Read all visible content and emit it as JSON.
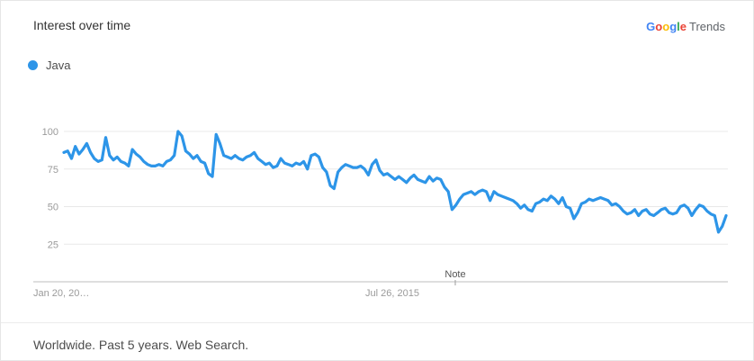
{
  "header": {
    "title": "Interest over time"
  },
  "brand": {
    "google": "Google",
    "trends": "Trends"
  },
  "colors": {
    "series": "#2d95e8",
    "g_blue": "#4285f4",
    "g_red": "#ea4335",
    "g_yellow": "#fbbc05",
    "g_green": "#34a853",
    "grid": "#e8e8e8",
    "tick": "#9a9a9a"
  },
  "note": "Note",
  "footer": "Worldwide. Past 5 years. Web Search.",
  "chart_data": {
    "type": "line",
    "title": "",
    "xlabel": "",
    "ylabel": "",
    "ylim": [
      0,
      100
    ],
    "yticks": [
      "100",
      "75",
      "50",
      "25"
    ],
    "xticks": [
      "Jan 20, 20…",
      "Jul 26, 2015"
    ],
    "legend": "top-left",
    "grid": true,
    "series": [
      {
        "name": "Java",
        "values": [
          86,
          87,
          82,
          90,
          85,
          88,
          92,
          86,
          82,
          80,
          81,
          96,
          84,
          81,
          83,
          80,
          79,
          77,
          88,
          85,
          83,
          80,
          78,
          77,
          77,
          78,
          77,
          80,
          81,
          84,
          100,
          97,
          87,
          85,
          82,
          84,
          80,
          79,
          72,
          70,
          98,
          92,
          84,
          83,
          82,
          84,
          82,
          81,
          83,
          84,
          86,
          82,
          80,
          78,
          79,
          76,
          77,
          82,
          79,
          78,
          77,
          79,
          78,
          80,
          75,
          84,
          85,
          83,
          76,
          73,
          64,
          62,
          73,
          76,
          78,
          77,
          76,
          76,
          77,
          75,
          71,
          78,
          81,
          74,
          71,
          72,
          70,
          68,
          70,
          68,
          66,
          69,
          71,
          68,
          67,
          66,
          70,
          67,
          69,
          68,
          63,
          60,
          48,
          51,
          55,
          58,
          59,
          60,
          58,
          60,
          61,
          60,
          54,
          60,
          58,
          57,
          56,
          55,
          54,
          52,
          49,
          51,
          48,
          47,
          52,
          53,
          55,
          54,
          57,
          55,
          52,
          56,
          50,
          49,
          42,
          46,
          52,
          53,
          55,
          54,
          55,
          56,
          55,
          54,
          51,
          52,
          50,
          47,
          45,
          46,
          48,
          44,
          47,
          48,
          45,
          44,
          46,
          48,
          49,
          46,
          45,
          46,
          50,
          51,
          49,
          44,
          48,
          51,
          50,
          47,
          45,
          44,
          33,
          37,
          44
        ]
      }
    ]
  }
}
